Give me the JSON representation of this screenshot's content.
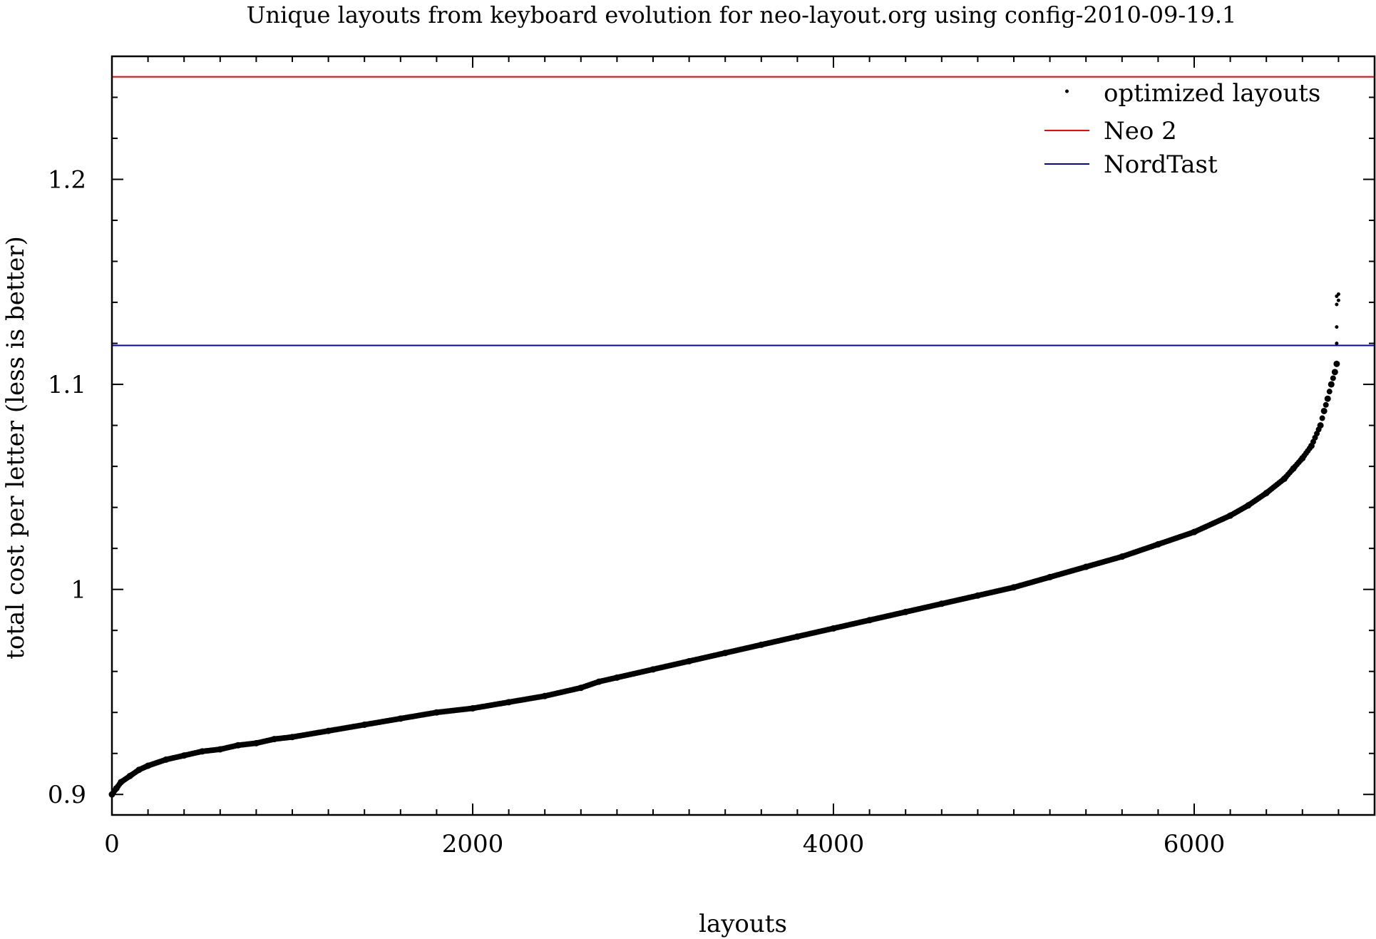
{
  "chart_data": {
    "type": "scatter",
    "title": "Unique layouts from keyboard evolution for neo-layout.org using config-2010-09-19.1",
    "xlabel": "layouts",
    "ylabel": "total cost per letter (less is better)",
    "xlim": [
      0,
      7000
    ],
    "ylim": [
      0.89,
      1.26
    ],
    "xticks": [
      {
        "value": 0,
        "label": "0"
      },
      {
        "value": 2000,
        "label": "2000"
      },
      {
        "value": 4000,
        "label": "4000"
      },
      {
        "value": 6000,
        "label": "6000"
      }
    ],
    "yticks": [
      {
        "value": 0.9,
        "label": "0.9"
      },
      {
        "value": 1.0,
        "label": "1"
      },
      {
        "value": 1.1,
        "label": "1.1"
      },
      {
        "value": 1.2,
        "label": "1.2"
      }
    ],
    "x_minor_step": 200,
    "y_minor_step": 0.02,
    "grid": false,
    "legend_position": "top-right",
    "series": [
      {
        "name": "optimized layouts",
        "kind": "points",
        "color": "#000000",
        "x": [
          0,
          25,
          50,
          100,
          150,
          200,
          300,
          400,
          500,
          600,
          700,
          800,
          900,
          1000,
          1200,
          1400,
          1600,
          1800,
          2000,
          2200,
          2400,
          2600,
          2700,
          2800,
          3000,
          3200,
          3400,
          3600,
          3800,
          4000,
          4200,
          4400,
          4600,
          4800,
          5000,
          5200,
          5400,
          5600,
          5800,
          6000,
          6200,
          6300,
          6400,
          6500,
          6550,
          6600,
          6650,
          6700,
          6720,
          6740,
          6760,
          6780,
          6790
        ],
        "y": [
          0.9,
          0.903,
          0.906,
          0.909,
          0.912,
          0.914,
          0.917,
          0.919,
          0.921,
          0.922,
          0.924,
          0.925,
          0.927,
          0.928,
          0.931,
          0.934,
          0.937,
          0.94,
          0.942,
          0.945,
          0.948,
          0.952,
          0.955,
          0.957,
          0.961,
          0.965,
          0.969,
          0.973,
          0.977,
          0.981,
          0.985,
          0.989,
          0.993,
          0.997,
          1.001,
          1.006,
          1.011,
          1.016,
          1.022,
          1.028,
          1.036,
          1.041,
          1.047,
          1.054,
          1.059,
          1.064,
          1.07,
          1.08,
          1.087,
          1.093,
          1.1,
          1.106,
          1.11
        ],
        "outliers": [
          {
            "x": 6790,
            "y": 1.12
          },
          {
            "x": 6790,
            "y": 1.128
          },
          {
            "x": 6790,
            "y": 1.139
          },
          {
            "x": 6790,
            "y": 1.143
          },
          {
            "x": 6800,
            "y": 1.141
          },
          {
            "x": 6800,
            "y": 1.144
          }
        ]
      },
      {
        "name": "Neo 2",
        "kind": "hline",
        "y": 1.25,
        "color": "#ff0000"
      },
      {
        "name": "NordTast",
        "kind": "hline",
        "y": 1.119,
        "color": "#0000cc"
      }
    ]
  }
}
